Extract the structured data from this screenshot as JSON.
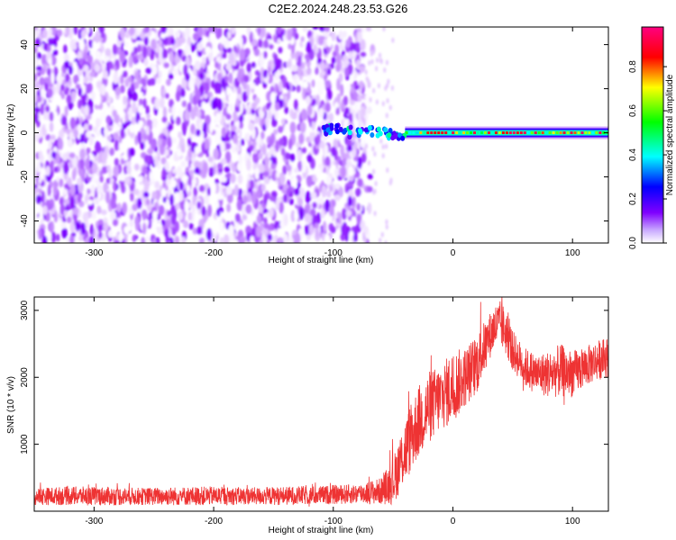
{
  "title": "C2E2.2024.248.23.53.G26",
  "chart_data": [
    {
      "type": "heatmap",
      "xlabel": "Height of straight line (km)",
      "ylabel": "Frequency (Hz)",
      "xlim": [
        -350,
        130
      ],
      "ylim": [
        -50,
        48
      ],
      "xticks": [
        -300,
        -200,
        -100,
        0,
        100
      ],
      "xtick_labels": [
        "-300",
        "-200",
        "-100",
        "0",
        "100"
      ],
      "yticks": [
        -40,
        -20,
        0,
        20,
        40
      ],
      "ytick_labels": [
        "-40",
        "-20",
        "0",
        "20",
        "40"
      ],
      "colorbar": {
        "label": "Normalized spectral amplitude",
        "range": [
          0,
          0.98
        ],
        "ticks": [
          0,
          0.2,
          0.4,
          0.6,
          0.8
        ],
        "tick_labels": [
          "0.0",
          "0.2",
          "0.4",
          "0.6",
          "0.8"
        ],
        "colormap": [
          "#ffffff",
          "#8000ff",
          "#0000ff",
          "#00ffff",
          "#00ff00",
          "#ffff00",
          "#ff0000",
          "#ff0080"
        ]
      },
      "regions": [
        {
          "description": "broadband noise",
          "x": [
            -350,
            -75
          ],
          "y": [
            -50,
            48
          ],
          "amplitude": [
            0.0,
            0.15
          ]
        },
        {
          "description": "signal onset",
          "x": [
            -110,
            -40
          ],
          "y": [
            -9,
            8
          ],
          "amplitude": [
            0.15,
            0.5
          ]
        },
        {
          "description": "narrow carrier line",
          "x": [
            -40,
            130
          ],
          "y": [
            -1,
            1
          ],
          "amplitude": [
            0.4,
            0.95
          ]
        }
      ]
    },
    {
      "type": "line",
      "xlabel": "Height of straight line (km)",
      "ylabel": "SNR (10 * v/v)",
      "xlim": [
        -350,
        130
      ],
      "ylim": [
        0,
        3200
      ],
      "xticks": [
        -300,
        -200,
        -100,
        0,
        100
      ],
      "xtick_labels": [
        "-300",
        "-200",
        "-100",
        "0",
        "100"
      ],
      "yticks": [
        1000,
        2000,
        3000
      ],
      "ytick_labels": [
        "1000",
        "2000",
        "3000"
      ],
      "color": "#ee3333",
      "series": [
        {
          "x": [
            -350,
            -320,
            -290,
            -260,
            -230,
            -200,
            -170,
            -140,
            -110,
            -80,
            -60,
            -50,
            -40,
            -30,
            -20,
            -10,
            0,
            10,
            20,
            30,
            35,
            40,
            45,
            50,
            60,
            70,
            80,
            90,
            100,
            110,
            120,
            130
          ],
          "y": [
            220,
            230,
            225,
            220,
            225,
            230,
            225,
            230,
            240,
            260,
            300,
            450,
            900,
            1300,
            1550,
            1700,
            1850,
            2000,
            2200,
            2600,
            2750,
            2800,
            2650,
            2400,
            2150,
            2050,
            2050,
            2100,
            2050,
            2150,
            2250,
            2300
          ],
          "spread": [
            130,
            140,
            140,
            130,
            140,
            140,
            130,
            140,
            140,
            150,
            200,
            350,
            500,
            550,
            550,
            500,
            550,
            450,
            450,
            350,
            350,
            350,
            350,
            300,
            300,
            300,
            350,
            400,
            350,
            300,
            300,
            300
          ]
        }
      ]
    }
  ]
}
